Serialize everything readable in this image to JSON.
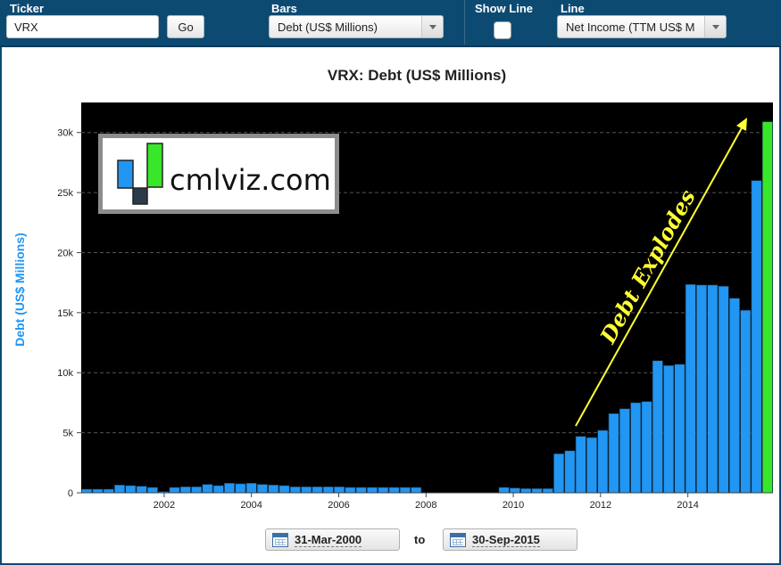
{
  "toolbar": {
    "ticker_label": "Ticker",
    "ticker_value": "VRX",
    "go_label": "Go",
    "bars_label": "Bars",
    "bars_selected": "Debt (US$ Millions)",
    "show_line_label": "Show Line",
    "line_label": "Line",
    "line_selected": "Net Income (TTM US$ M"
  },
  "logo": {
    "text": "cmlviz.com"
  },
  "date_range": {
    "start": "31-Mar-2000",
    "to_label": "to",
    "end": "30-Sep-2015"
  },
  "colors": {
    "bar": "#2196f3",
    "highlight_bar": "#39e72a",
    "plot_bg": "#000000",
    "annotation": "#ffff33",
    "ylabel": "#2196f3"
  },
  "chart_data": {
    "type": "bar",
    "title": "VRX: Debt (US$ Millions)",
    "ylabel": "Debt (US$ Millions)",
    "xlabel": "",
    "ylim": [
      0,
      32500
    ],
    "yticks": [
      0,
      5000,
      10000,
      15000,
      20000,
      25000,
      30000
    ],
    "ytick_labels": [
      "0",
      "5k",
      "10k",
      "15k",
      "20k",
      "25k",
      "30k"
    ],
    "xlim": [
      2000.1,
      2015.95
    ],
    "xticks": [
      2002,
      2004,
      2006,
      2008,
      2010,
      2012,
      2014
    ],
    "xtick_labels": [
      "2002",
      "2004",
      "2006",
      "2008",
      "2010",
      "2012",
      "2014"
    ],
    "grid": true,
    "categories": [
      "Q1 2000",
      "Q2 2000",
      "Q3 2000",
      "Q4 2000",
      "Q1 2001",
      "Q2 2001",
      "Q3 2001",
      "Q4 2001",
      "Q1 2002",
      "Q2 2002",
      "Q3 2002",
      "Q4 2002",
      "Q1 2003",
      "Q2 2003",
      "Q3 2003",
      "Q4 2003",
      "Q1 2004",
      "Q2 2004",
      "Q3 2004",
      "Q4 2004",
      "Q1 2005",
      "Q2 2005",
      "Q3 2005",
      "Q4 2005",
      "Q1 2006",
      "Q2 2006",
      "Q3 2006",
      "Q4 2006",
      "Q1 2007",
      "Q2 2007",
      "Q3 2007",
      "Q4 2007",
      "Q1 2008",
      "Q2 2008",
      "Q3 2008",
      "Q4 2008",
      "Q1 2009",
      "Q2 2009",
      "Q3 2009",
      "Q4 2009",
      "Q1 2010",
      "Q2 2010",
      "Q3 2010",
      "Q4 2010",
      "Q1 2011",
      "Q2 2011",
      "Q3 2011",
      "Q4 2011",
      "Q1 2012",
      "Q2 2012",
      "Q3 2012",
      "Q4 2012",
      "Q1 2013",
      "Q2 2013",
      "Q3 2013",
      "Q4 2013",
      "Q1 2014",
      "Q2 2014",
      "Q3 2014",
      "Q4 2014",
      "Q1 2015",
      "Q2 2015",
      "Q3 2015"
    ],
    "values": [
      300,
      300,
      300,
      650,
      600,
      550,
      450,
      100,
      450,
      500,
      500,
      700,
      600,
      800,
      750,
      800,
      700,
      650,
      600,
      500,
      500,
      500,
      500,
      500,
      450,
      450,
      450,
      450,
      450,
      450,
      450,
      0,
      0,
      0,
      0,
      0,
      0,
      0,
      450,
      400,
      350,
      350,
      350,
      3250,
      3500,
      4700,
      4600,
      5200,
      6600,
      7000,
      7500,
      7600,
      11000,
      10600,
      10700,
      17350,
      17300,
      17300,
      17200,
      16200,
      15200,
      26000,
      30900
    ],
    "highlight_last": true,
    "annotation": "Debt Explodes"
  }
}
